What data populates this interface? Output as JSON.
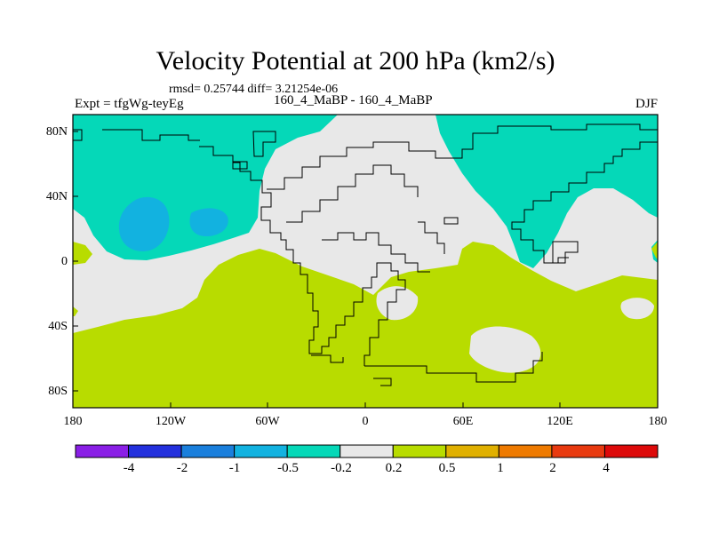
{
  "title": "Velocity Potential at 200 hPa (km2/s)",
  "stats": "rmsd= 0.25744 diff= 3.21254e-06",
  "experiment": "Expt = tfgWg-teyEg",
  "cases": "160_4_MaBP - 160_4_MaBP",
  "season": "DJF",
  "lat_labels": [
    "80N",
    "40N",
    "0",
    "40S",
    "80S"
  ],
  "lon_labels": [
    "180",
    "120W",
    "60W",
    "0",
    "60E",
    "120E",
    "180"
  ],
  "colorbar": {
    "labels": [
      "-4",
      "-2",
      "-1",
      "-0.5",
      "-0.2",
      "0.2",
      "0.5",
      "1",
      "2",
      "4"
    ],
    "colors": [
      "#8a1fe6",
      "#2330dd",
      "#1a7fdc",
      "#12b2e0",
      "#05d8b8",
      "#e8e8e8",
      "#b8dc00",
      "#e0b000",
      "#ee7a00",
      "#e83a10",
      "#dd0a0a"
    ]
  },
  "map_colors": {
    "background": "#e8e8e8",
    "band_neg02_neg05": "#05d8b8",
    "band_neg05_neg1": "#12b2e0",
    "band_02_05": "#b8dc00"
  }
}
